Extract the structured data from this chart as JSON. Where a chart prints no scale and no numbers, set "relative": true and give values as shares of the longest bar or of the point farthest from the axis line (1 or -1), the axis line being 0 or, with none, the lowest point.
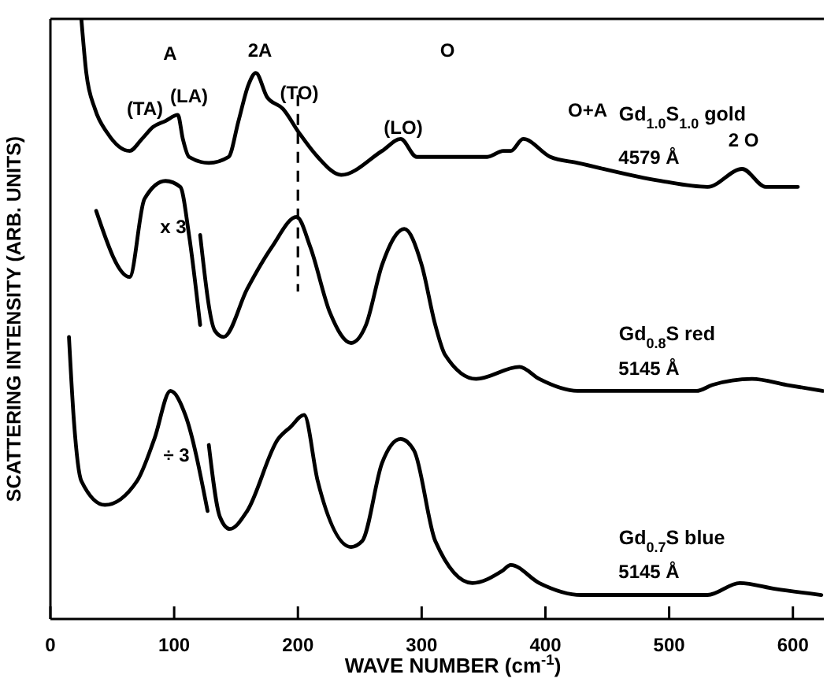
{
  "chart_data": {
    "type": "line",
    "relative": true,
    "xlabel": "WAVE  NUMBER  (cm$^{-1}$)",
    "ylabel": "SCATTERING INTENSITY  (ARB. UNITS)",
    "xlim": [
      0,
      625
    ],
    "xticks": [
      0,
      100,
      200,
      300,
      400,
      500,
      600
    ],
    "tick_labels": "x",
    "series": [
      {
        "name": "Gd$_{1.0}$S$_{1.0}$  gold",
        "color": "#000000",
        "x": [
          25,
          29,
          36,
          46,
          64,
          74,
          83,
          93,
          103,
          107,
          112,
          128,
          144,
          152,
          160,
          166,
          175,
          188,
          201,
          216,
          235,
          268,
          283,
          296,
          315,
          353,
          366,
          372,
          382,
          404,
          426,
          493,
          531,
          559,
          578,
          604
        ],
        "values": [
          1.0,
          0.91,
          0.85,
          0.81,
          0.78,
          0.8,
          0.82,
          0.83,
          0.84,
          0.8,
          0.77,
          0.76,
          0.77,
          0.83,
          0.89,
          0.91,
          0.87,
          0.85,
          0.81,
          0.77,
          0.74,
          0.78,
          0.8,
          0.77,
          0.77,
          0.77,
          0.78,
          0.78,
          0.8,
          0.77,
          0.76,
          0.73,
          0.72,
          0.75,
          0.72,
          0.72
        ]
      },
      {
        "name": "Gd$_{0.8}$S   red",
        "color": "#000000",
        "x": [
          37,
          64,
          76,
          93,
          105,
          112,
          121,
          null,
          121,
          133,
          140,
          159,
          179,
          199,
          210,
          226,
          243,
          255,
          268,
          286,
          300,
          311,
          319,
          344,
          379,
          395,
          426,
          522,
          535,
          567,
          595,
          624
        ],
        "values": [
          0.68,
          0.57,
          0.7,
          0.73,
          0.72,
          0.64,
          0.49,
          null,
          0.64,
          0.48,
          0.47,
          0.55,
          0.62,
          0.67,
          0.62,
          0.51,
          0.46,
          0.49,
          0.59,
          0.65,
          0.59,
          0.49,
          0.44,
          0.4,
          0.42,
          0.4,
          0.38,
          0.38,
          0.39,
          0.4,
          0.39,
          0.38
        ]
      },
      {
        "name": "Gd$_{0.7}$S   blue",
        "color": "#000000",
        "x": [
          15,
          19,
          25,
          44,
          70,
          84,
          97,
          109,
          127,
          null,
          128,
          137,
          145,
          159,
          184,
          194,
          205,
          216,
          243,
          252,
          268,
          283,
          294,
          311,
          341,
          365,
          372,
          395,
          429,
          531,
          557,
          586,
          623
        ],
        "values": [
          0.47,
          0.33,
          0.23,
          0.19,
          0.23,
          0.3,
          0.38,
          0.34,
          0.18,
          null,
          0.29,
          0.17,
          0.15,
          0.18,
          0.3,
          0.32,
          0.34,
          0.23,
          0.12,
          0.13,
          0.26,
          0.3,
          0.28,
          0.13,
          0.06,
          0.08,
          0.09,
          0.06,
          0.04,
          0.04,
          0.06,
          0.05,
          0.04
        ]
      }
    ],
    "ref_lines": [
      {
        "axis": "x",
        "value": 200,
        "line_style": "dashed"
      }
    ],
    "annotations": [
      "A",
      "2A",
      "O",
      "(TA)",
      "(LA)",
      "(TO)",
      "(LO)",
      "O+A",
      "2 O",
      "x 3",
      "÷ 3",
      "4579 Å",
      "5145 Å",
      "5145 Å"
    ]
  }
}
